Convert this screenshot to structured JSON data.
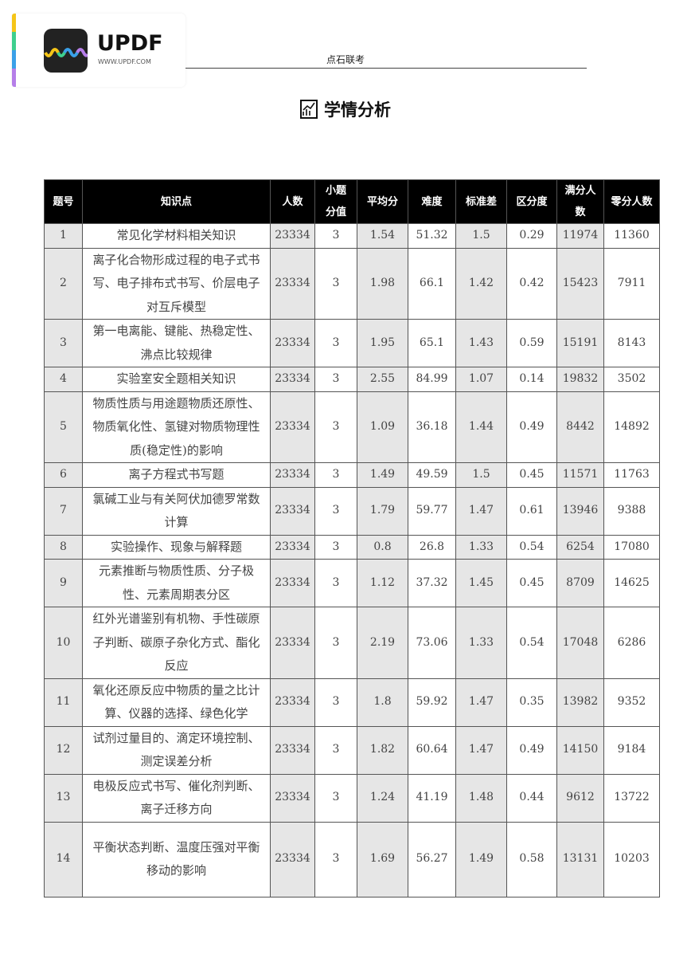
{
  "logo": {
    "name": "UPDF",
    "url": "WWW.UPDF.COM"
  },
  "header": {
    "text": "点石联考"
  },
  "title": {
    "icon": "chart-icon",
    "text": "学情分析"
  },
  "table": {
    "columns": [
      "题号",
      "知识点",
      "人数",
      "小题分值",
      "平均分",
      "难度",
      "标准差",
      "区分度",
      "满分人数",
      "零分人数"
    ],
    "rows": [
      [
        "1",
        "常见化学材料相关知识",
        "23334",
        "3",
        "1.54",
        "51.32",
        "1.5",
        "0.29",
        "11974",
        "11360"
      ],
      [
        "2",
        "离子化合物形成过程的电子式书写、电子排布式书写、价层电子对互斥模型",
        "23334",
        "3",
        "1.98",
        "66.1",
        "1.42",
        "0.42",
        "15423",
        "7911"
      ],
      [
        "3",
        "第一电离能、键能、热稳定性、沸点比较规律",
        "23334",
        "3",
        "1.95",
        "65.1",
        "1.43",
        "0.59",
        "15191",
        "8143"
      ],
      [
        "4",
        "实验室安全题相关知识",
        "23334",
        "3",
        "2.55",
        "84.99",
        "1.07",
        "0.14",
        "19832",
        "3502"
      ],
      [
        "5",
        "物质性质与用途题物质还原性、物质氧化性、氢键对物质物理性质(稳定性)的影响",
        "23334",
        "3",
        "1.09",
        "36.18",
        "1.44",
        "0.49",
        "8442",
        "14892"
      ],
      [
        "6",
        "离子方程式书写题",
        "23334",
        "3",
        "1.49",
        "49.59",
        "1.5",
        "0.45",
        "11571",
        "11763"
      ],
      [
        "7",
        "氯碱工业与有关阿伏加德罗常数计算",
        "23334",
        "3",
        "1.79",
        "59.77",
        "1.47",
        "0.61",
        "13946",
        "9388"
      ],
      [
        "8",
        "实验操作、现象与解释题",
        "23334",
        "3",
        "0.8",
        "26.8",
        "1.33",
        "0.54",
        "6254",
        "17080"
      ],
      [
        "9",
        "元素推断与物质性质、分子极性、元素周期表分区",
        "23334",
        "3",
        "1.12",
        "37.32",
        "1.45",
        "0.45",
        "8709",
        "14625"
      ],
      [
        "10",
        "红外光谱鉴别有机物、手性碳原子判断、碳原子杂化方式、酯化反应",
        "23334",
        "3",
        "2.19",
        "73.06",
        "1.33",
        "0.54",
        "17048",
        "6286"
      ],
      [
        "11",
        "氧化还原反应中物质的量之比计算、仪器的选择、绿色化学",
        "23334",
        "3",
        "1.8",
        "59.92",
        "1.47",
        "0.35",
        "13982",
        "9352"
      ],
      [
        "12",
        "试剂过量目的、滴定环境控制、测定误差分析",
        "23334",
        "3",
        "1.82",
        "60.64",
        "1.47",
        "0.49",
        "14150",
        "9184"
      ],
      [
        "13",
        "电极反应式书写、催化剂判断、离子迁移方向",
        "23334",
        "3",
        "1.24",
        "41.19",
        "1.48",
        "0.44",
        "9612",
        "13722"
      ],
      [
        "14",
        "平衡状态判断、温度压强对平衡移动的影响",
        "23334",
        "3",
        "1.69",
        "56.27",
        "1.49",
        "0.58",
        "13131",
        "10203"
      ]
    ]
  }
}
